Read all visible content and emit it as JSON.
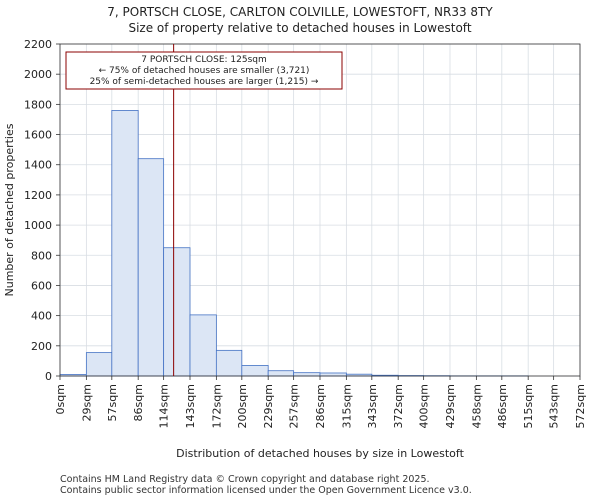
{
  "chart_data": {
    "type": "bar",
    "title": "7, PORTSCH CLOSE, CARLTON COLVILLE, LOWESTOFT, NR33 8TY",
    "subtitle": "Size of property relative to detached houses in Lowestoft",
    "xlabel": "Distribution of detached houses by size in Lowestoft",
    "ylabel": "Number of detached properties",
    "ylim": [
      0,
      2200
    ],
    "yticks": [
      0,
      200,
      400,
      600,
      800,
      1000,
      1200,
      1400,
      1600,
      1800,
      2000,
      2200
    ],
    "xrange": [
      0,
      572
    ],
    "bin_edges": [
      0,
      29,
      57,
      86,
      114,
      143,
      172,
      200,
      229,
      257,
      286,
      315,
      343,
      372,
      400,
      429,
      458,
      486,
      515,
      543,
      572
    ],
    "tick_labels": [
      "0sqm",
      "29sqm",
      "57sqm",
      "86sqm",
      "114sqm",
      "143sqm",
      "172sqm",
      "200sqm",
      "229sqm",
      "257sqm",
      "286sqm",
      "315sqm",
      "343sqm",
      "372sqm",
      "400sqm",
      "429sqm",
      "458sqm",
      "486sqm",
      "515sqm",
      "543sqm",
      "572sqm"
    ],
    "values": [
      10,
      155,
      1760,
      1440,
      850,
      405,
      170,
      70,
      35,
      22,
      20,
      12,
      5,
      3,
      2,
      1,
      1,
      1,
      0,
      0
    ],
    "marker": {
      "value": 125,
      "color": "#8b0000"
    },
    "annotation": {
      "lines": [
        "7 PORTSCH CLOSE: 125sqm",
        "← 75% of detached houses are smaller (3,721)",
        "25% of semi-detached houses are larger (1,215) →"
      ]
    },
    "colors": {
      "bar_fill": "#dce6f5",
      "bar_stroke": "#4472c4",
      "grid": "#d8dde3",
      "marker": "#8b0000"
    },
    "grid": true
  },
  "footer": {
    "line1": "Contains HM Land Registry data © Crown copyright and database right 2025.",
    "line2": "Contains public sector information licensed under the Open Government Licence v3.0."
  }
}
